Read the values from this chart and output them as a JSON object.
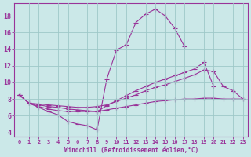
{
  "xlabel": "Windchill (Refroidissement éolien,°C)",
  "background_color": "#cbe8e8",
  "grid_color": "#9ec8c8",
  "line_color": "#993399",
  "xlim": [
    -0.5,
    23.5
  ],
  "ylim": [
    3.5,
    19.5
  ],
  "yticks": [
    4,
    6,
    8,
    10,
    12,
    14,
    16,
    18
  ],
  "xticks": [
    0,
    1,
    2,
    3,
    4,
    5,
    6,
    7,
    8,
    9,
    10,
    11,
    12,
    13,
    14,
    15,
    16,
    17,
    18,
    19,
    20,
    21,
    22,
    23
  ],
  "line1_x": [
    0,
    1,
    2,
    3,
    4,
    5,
    6,
    7,
    8,
    9,
    10,
    11,
    12,
    13,
    14,
    15,
    16,
    17
  ],
  "line1_y": [
    8.5,
    7.5,
    7.0,
    6.5,
    6.1,
    5.3,
    5.0,
    4.8,
    4.3,
    10.4,
    13.9,
    14.5,
    17.2,
    18.2,
    18.8,
    18.0,
    16.5,
    14.3
  ],
  "line2_x": [
    0,
    1,
    2,
    3,
    4,
    5,
    6,
    7,
    8,
    9,
    10,
    11,
    12,
    13,
    14,
    15,
    16,
    17,
    18,
    19,
    20
  ],
  "line2_y": [
    8.5,
    7.5,
    7.3,
    7.1,
    7.0,
    6.8,
    6.7,
    6.6,
    6.5,
    7.2,
    7.8,
    8.4,
    9.0,
    9.5,
    10.0,
    10.4,
    10.8,
    11.2,
    11.6,
    12.4,
    9.5
  ],
  "line3_x": [
    0,
    1,
    2,
    3,
    4,
    5,
    6,
    7,
    8,
    9,
    10,
    11,
    12,
    13,
    14,
    15,
    16,
    17,
    18,
    19,
    20,
    21,
    22,
    23
  ],
  "line3_y": [
    8.5,
    7.5,
    7.4,
    7.3,
    7.2,
    7.1,
    7.0,
    7.0,
    7.1,
    7.3,
    7.7,
    8.1,
    8.5,
    9.0,
    9.4,
    9.7,
    10.1,
    10.5,
    10.9,
    11.5,
    11.3,
    9.5,
    9.0,
    8.0
  ],
  "line4_x": [
    0,
    1,
    2,
    3,
    4,
    5,
    6,
    7,
    8,
    9,
    10,
    11,
    12,
    13,
    14,
    15,
    16,
    17,
    18,
    19,
    20,
    21,
    22,
    23
  ],
  "line4_y": [
    8.5,
    7.5,
    7.1,
    6.8,
    6.6,
    6.5,
    6.5,
    6.5,
    6.5,
    6.7,
    6.9,
    7.1,
    7.3,
    7.5,
    7.7,
    7.8,
    7.9,
    8.0,
    8.0,
    8.1,
    8.1,
    8.0,
    8.0,
    8.0
  ]
}
